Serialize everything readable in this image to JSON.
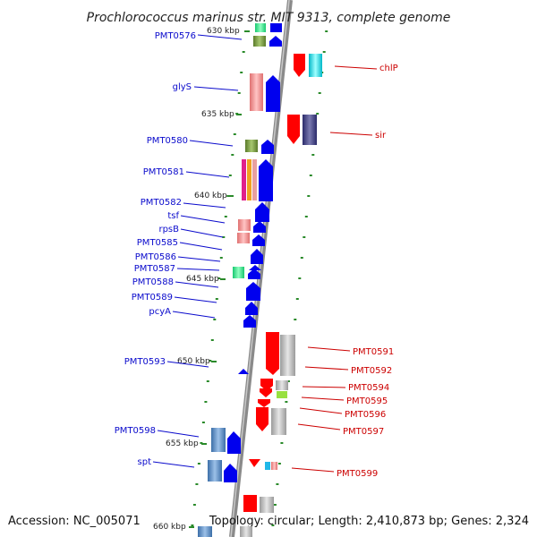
{
  "title": "Prochlorococcus marinus str. MIT 9313, complete genome",
  "footer": {
    "accession": "Accession: NC_005071",
    "summary": "Topology: circular; Length: 2,410,873 bp; Genes: 2,324"
  },
  "colors": {
    "forward_label": "#0a0acc",
    "reverse_label": "#cc0000",
    "backbone": "#8a8a8a",
    "tick": "#2a8a2a"
  },
  "kbp_marks": [
    "630 kbp",
    "635 kbp",
    "640 kbp",
    "645 kbp",
    "650 kbp",
    "655 kbp",
    "660 kbp"
  ],
  "forward_genes": [
    "PMT0576",
    "glyS",
    "PMT0580",
    "PMT0581",
    "PMT0582",
    "tsf",
    "rpsB",
    "PMT0585",
    "PMT0586",
    "PMT0587",
    "PMT0588",
    "PMT0589",
    "pcyA",
    "PMT0593",
    "PMT0598",
    "spt"
  ],
  "reverse_genes": [
    "chlP",
    "sir",
    "PMT0591",
    "PMT0592",
    "PMT0594",
    "PMT0595",
    "PMT0596",
    "PMT0597",
    "PMT0599"
  ]
}
